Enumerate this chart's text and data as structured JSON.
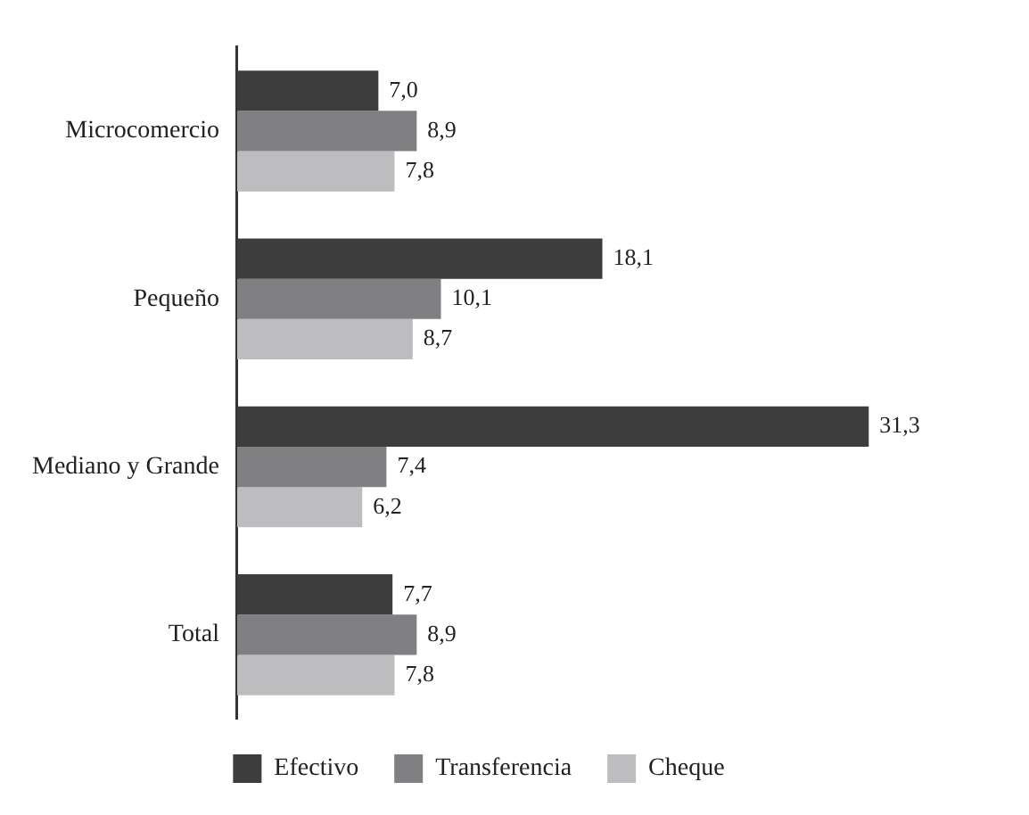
{
  "chart_data": {
    "type": "bar",
    "orientation": "horizontal",
    "categories": [
      "Microcomercio",
      "Pequeño",
      "Mediano y Grande",
      "Total"
    ],
    "series": [
      {
        "name": "Efectivo",
        "color": "#3d3d3d",
        "values": [
          7.0,
          18.1,
          31.3,
          7.7
        ],
        "value_labels": [
          "7,0",
          "18,1",
          "31,3",
          "7,7"
        ]
      },
      {
        "name": "Transferencia",
        "color": "#808082",
        "values": [
          8.9,
          10.1,
          7.4,
          8.9
        ],
        "value_labels": [
          "8,9",
          "10,1",
          "7,4",
          "8,9"
        ]
      },
      {
        "name": "Cheque",
        "color": "#bdbdbf",
        "values": [
          7.8,
          8.7,
          6.2,
          7.8
        ],
        "value_labels": [
          "7,8",
          "8,7",
          "6,2",
          "7,8"
        ]
      }
    ],
    "legend": "bottom"
  }
}
